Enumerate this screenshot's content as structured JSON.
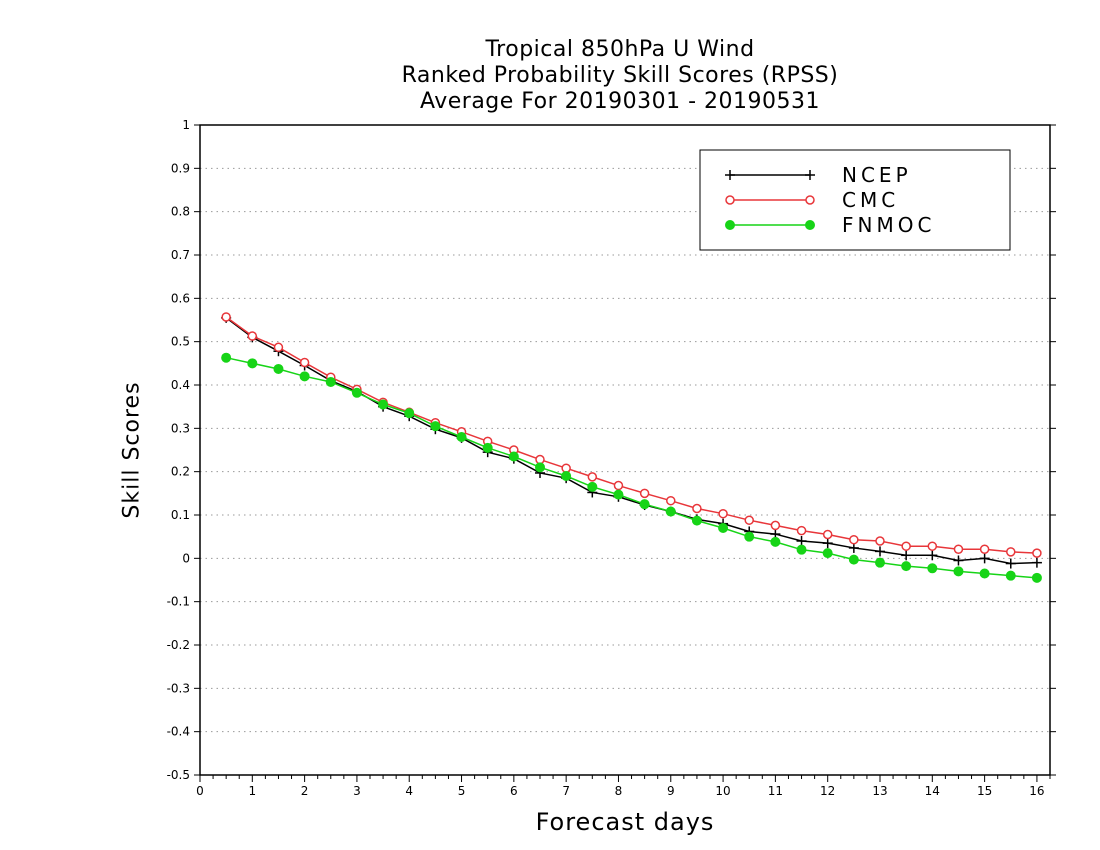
{
  "chart_data": {
    "type": "line",
    "title": [
      "Tropical 850hPa U Wind",
      "Ranked Probability Skill Scores (RPSS)",
      "Average For 20190301 - 20190531"
    ],
    "xlabel": "Forecast days",
    "ylabel": "Skill Scores",
    "xlim": [
      0,
      16.25
    ],
    "ylim": [
      -0.5,
      1
    ],
    "xticks": [
      0,
      1,
      2,
      3,
      4,
      5,
      6,
      7,
      8,
      9,
      10,
      11,
      12,
      13,
      14,
      15,
      16
    ],
    "yticks": [
      -0.5,
      -0.4,
      -0.3,
      -0.2,
      -0.1,
      0,
      0.1,
      0.2,
      0.3,
      0.4,
      0.5,
      0.6,
      0.7,
      0.8,
      0.9,
      1
    ],
    "ytick_labels": [
      "-0.5",
      "-0.4",
      "-0.3",
      "-0.2",
      "-0.1",
      "0",
      "0.1",
      "0.2",
      "0.3",
      "0.4",
      "0.5",
      "0.6",
      "0.7",
      "0.8",
      "0.9",
      "1"
    ],
    "grid": true,
    "legend_position": "top-right",
    "x": [
      0.5,
      1,
      1.5,
      2,
      2.5,
      3,
      3.5,
      4,
      4.5,
      5,
      5.5,
      6,
      6.5,
      7,
      7.5,
      8,
      8.5,
      9,
      9.5,
      10,
      10.5,
      11,
      11.5,
      12,
      12.5,
      13,
      13.5,
      14,
      14.5,
      15,
      15.5,
      16
    ],
    "series": [
      {
        "name": "NCEP",
        "color": "#000000",
        "marker": "plus",
        "values": [
          0.555,
          0.51,
          0.478,
          0.445,
          0.41,
          0.385,
          0.35,
          0.328,
          0.298,
          0.278,
          0.245,
          0.23,
          0.197,
          0.185,
          0.152,
          0.142,
          0.123,
          0.108,
          0.09,
          0.08,
          0.062,
          0.056,
          0.04,
          0.035,
          0.024,
          0.016,
          0.007,
          0.007,
          -0.005,
          0.0,
          -0.012,
          -0.01
        ]
      },
      {
        "name": "CMC",
        "color": "#e8363a",
        "marker": "open-circle",
        "values": [
          0.557,
          0.513,
          0.487,
          0.452,
          0.418,
          0.39,
          0.36,
          0.337,
          0.313,
          0.292,
          0.27,
          0.25,
          0.228,
          0.208,
          0.188,
          0.168,
          0.15,
          0.133,
          0.115,
          0.103,
          0.088,
          0.076,
          0.064,
          0.055,
          0.043,
          0.04,
          0.028,
          0.028,
          0.021,
          0.021,
          0.015,
          0.012
        ]
      },
      {
        "name": "FNMOC",
        "color": "#17d417",
        "marker": "filled-circle",
        "values": [
          0.463,
          0.45,
          0.437,
          0.42,
          0.407,
          0.382,
          0.355,
          0.335,
          0.305,
          0.28,
          0.255,
          0.235,
          0.21,
          0.19,
          0.165,
          0.147,
          0.125,
          0.108,
          0.087,
          0.07,
          0.05,
          0.038,
          0.02,
          0.012,
          -0.003,
          -0.01,
          -0.018,
          -0.023,
          -0.03,
          -0.035,
          -0.04,
          -0.045
        ]
      }
    ]
  }
}
